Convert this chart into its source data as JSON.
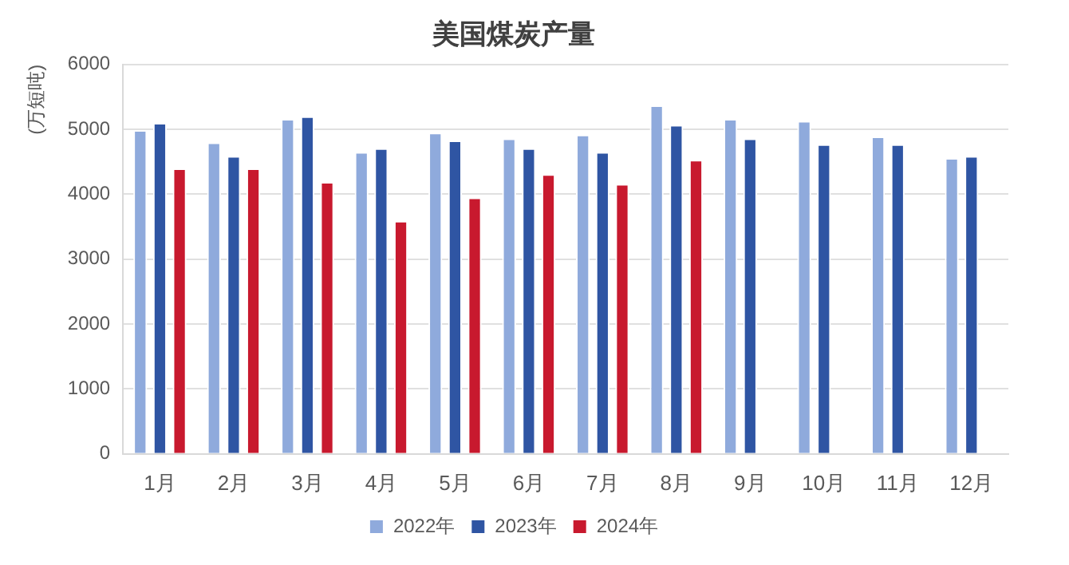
{
  "chart_data": {
    "type": "bar",
    "title": "美国煤炭产量",
    "ylabel": "(万短吨)",
    "categories": [
      "1月",
      "2月",
      "3月",
      "4月",
      "5月",
      "6月",
      "7月",
      "8月",
      "9月",
      "10月",
      "11月",
      "12月"
    ],
    "series": [
      {
        "name": "2022年",
        "color": "#8faadc",
        "values": [
          4990,
          4800,
          5160,
          4650,
          4950,
          4860,
          4920,
          5370,
          5160,
          5130,
          4890,
          4560
        ]
      },
      {
        "name": "2023年",
        "color": "#2f55a3",
        "values": [
          5100,
          4590,
          5200,
          4710,
          4830,
          4710,
          4650,
          5070,
          4860,
          4770,
          4770,
          4590
        ]
      },
      {
        "name": "2024年",
        "color": "#c8192e",
        "values": [
          4400,
          4400,
          4190,
          3590,
          3950,
          4310,
          4160,
          4530,
          null,
          null,
          null,
          null
        ]
      }
    ],
    "ylim": [
      0,
      6000
    ],
    "yticks": [
      0,
      1000,
      2000,
      3000,
      4000,
      5000,
      6000
    ],
    "grid": "y",
    "legend": "bottom"
  }
}
